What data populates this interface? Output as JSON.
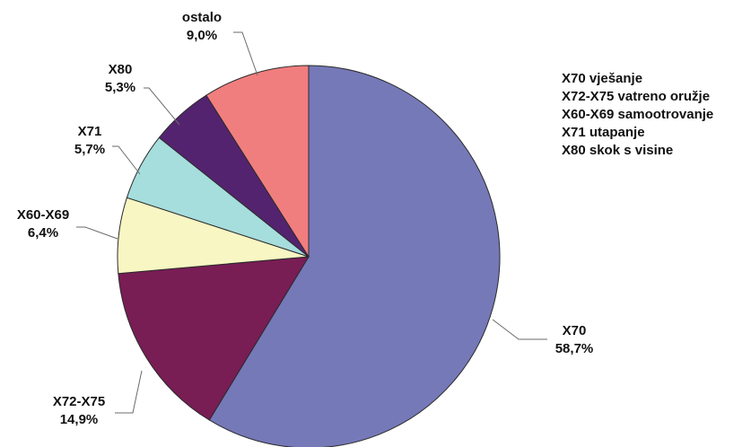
{
  "chart_data": {
    "type": "pie",
    "categories": [
      "X70",
      "X72-X75",
      "X60-X69",
      "X71",
      "X80",
      "ostalo"
    ],
    "values": [
      58.7,
      14.9,
      6.4,
      5.7,
      5.3,
      9.0
    ],
    "value_labels": [
      "58,7%",
      "14,9%",
      "6,4%",
      "5,7%",
      "5,3%",
      "9,0%"
    ],
    "colors": [
      "#7579b8",
      "#791d55",
      "#f8f6c3",
      "#a6dddd",
      "#54236f",
      "#f17e7e"
    ],
    "start": "12 o'clock",
    "direction": "clockwise",
    "legend": {
      "placement": "top-right",
      "entries": [
        "X70 vješanje",
        "X72-X75 vatreno oružje",
        "X60-X69 samootrovanje",
        "X71 utapanje",
        "X80 skok s visine"
      ]
    }
  }
}
